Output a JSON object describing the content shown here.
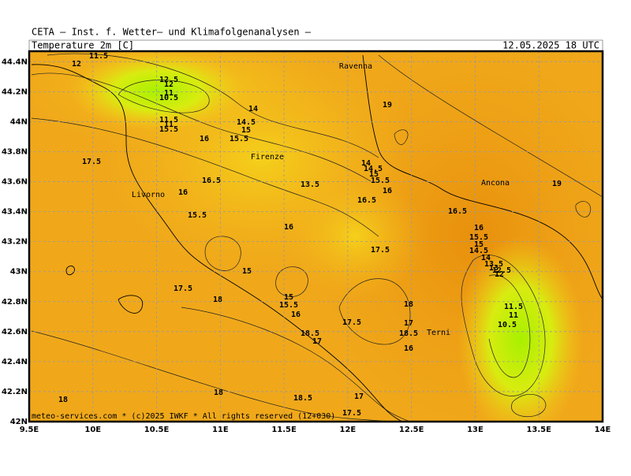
{
  "header": {
    "line": "CETA — Inst. f. Wetter— und Klimafolgenanalysen —",
    "variable": "Temperature_2m [C]",
    "valid_time": "12.05.2025 18 UTC"
  },
  "map": {
    "xlim": [
      9.5,
      14
    ],
    "ylim": [
      42,
      44.47
    ],
    "xticks": [
      {
        "value": 9.5,
        "label": "9.5E"
      },
      {
        "value": 10,
        "label": "10E"
      },
      {
        "value": 10.5,
        "label": "10.5E"
      },
      {
        "value": 11,
        "label": "11E"
      },
      {
        "value": 11.5,
        "label": "11.5E"
      },
      {
        "value": 12,
        "label": "12E"
      },
      {
        "value": 12.5,
        "label": "12.5E"
      },
      {
        "value": 13,
        "label": "13E"
      },
      {
        "value": 13.5,
        "label": "13.5E"
      },
      {
        "value": 14,
        "label": "14E"
      }
    ],
    "yticks": [
      {
        "value": 42,
        "label": "42N"
      },
      {
        "value": 42.2,
        "label": "42.2N"
      },
      {
        "value": 42.4,
        "label": "42.4N"
      },
      {
        "value": 42.6,
        "label": "42.6N"
      },
      {
        "value": 42.8,
        "label": "42.8N"
      },
      {
        "value": 43,
        "label": "43N"
      },
      {
        "value": 43.2,
        "label": "43.2N"
      },
      {
        "value": 43.4,
        "label": "43.4N"
      },
      {
        "value": 43.6,
        "label": "43.6N"
      },
      {
        "value": 43.8,
        "label": "43.8N"
      },
      {
        "value": 44,
        "label": "44N"
      },
      {
        "value": 44.2,
        "label": "44.2N"
      },
      {
        "value": 44.4,
        "label": "44.4N"
      }
    ],
    "grid": true,
    "cities": [
      "Ravenna",
      "Firenze",
      "Livorno",
      "Ancona",
      "Terni"
    ],
    "contour_labels": [
      11.5,
      12,
      12.5,
      12,
      11,
      10.5,
      14,
      14.5,
      15,
      11.5,
      11,
      15.5,
      16,
      15.5,
      19,
      17.5,
      14,
      14.5,
      15,
      15.5,
      16,
      13.5,
      16.5,
      16,
      19,
      16.5,
      16.5,
      15.5,
      16,
      16,
      15.5,
      15,
      14.5,
      14,
      13.5,
      13,
      12.5,
      12,
      17.5,
      15,
      17.5,
      18,
      15,
      15.5,
      16,
      18,
      11.5,
      11,
      10.5,
      17.5,
      17,
      18.5,
      17,
      18.5,
      16,
      18,
      18,
      18.5,
      17,
      17.5
    ]
  },
  "footer": "meteo-services.com * (c)2025 IWKF * All rights reserved (12+030)"
}
